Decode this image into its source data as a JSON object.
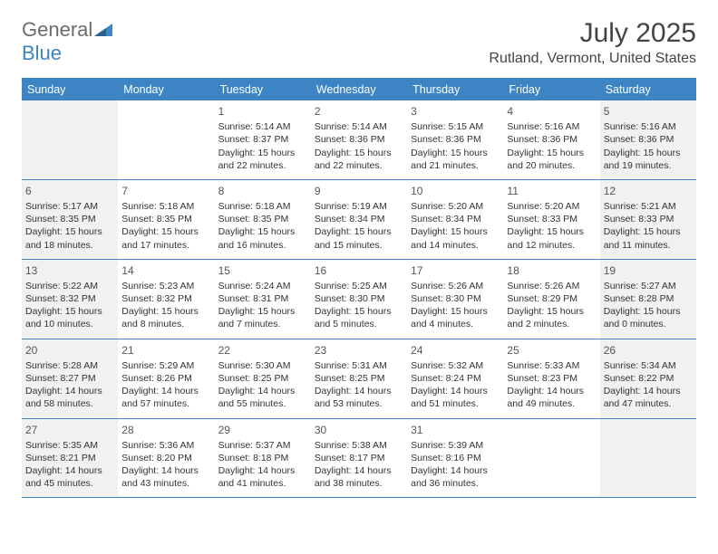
{
  "logo": {
    "text_general": "General",
    "text_blue": "Blue",
    "triangle_color": "#3d84c4"
  },
  "title": "July 2025",
  "location": "Rutland, Vermont, United States",
  "colors": {
    "header_bg": "#3d84c4",
    "header_text": "#ffffff",
    "body_text": "#333333",
    "shaded_bg": "#f1f1f1",
    "border": "#3d84c4"
  },
  "day_headers": [
    "Sunday",
    "Monday",
    "Tuesday",
    "Wednesday",
    "Thursday",
    "Friday",
    "Saturday"
  ],
  "weeks": [
    [
      {
        "num": "",
        "shaded": true,
        "sunrise": "",
        "sunset": "",
        "daylight1": "",
        "daylight2": ""
      },
      {
        "num": "",
        "shaded": false,
        "sunrise": "",
        "sunset": "",
        "daylight1": "",
        "daylight2": ""
      },
      {
        "num": "1",
        "shaded": false,
        "sunrise": "Sunrise: 5:14 AM",
        "sunset": "Sunset: 8:37 PM",
        "daylight1": "Daylight: 15 hours",
        "daylight2": "and 22 minutes."
      },
      {
        "num": "2",
        "shaded": false,
        "sunrise": "Sunrise: 5:14 AM",
        "sunset": "Sunset: 8:36 PM",
        "daylight1": "Daylight: 15 hours",
        "daylight2": "and 22 minutes."
      },
      {
        "num": "3",
        "shaded": false,
        "sunrise": "Sunrise: 5:15 AM",
        "sunset": "Sunset: 8:36 PM",
        "daylight1": "Daylight: 15 hours",
        "daylight2": "and 21 minutes."
      },
      {
        "num": "4",
        "shaded": false,
        "sunrise": "Sunrise: 5:16 AM",
        "sunset": "Sunset: 8:36 PM",
        "daylight1": "Daylight: 15 hours",
        "daylight2": "and 20 minutes."
      },
      {
        "num": "5",
        "shaded": true,
        "sunrise": "Sunrise: 5:16 AM",
        "sunset": "Sunset: 8:36 PM",
        "daylight1": "Daylight: 15 hours",
        "daylight2": "and 19 minutes."
      }
    ],
    [
      {
        "num": "6",
        "shaded": true,
        "sunrise": "Sunrise: 5:17 AM",
        "sunset": "Sunset: 8:35 PM",
        "daylight1": "Daylight: 15 hours",
        "daylight2": "and 18 minutes."
      },
      {
        "num": "7",
        "shaded": false,
        "sunrise": "Sunrise: 5:18 AM",
        "sunset": "Sunset: 8:35 PM",
        "daylight1": "Daylight: 15 hours",
        "daylight2": "and 17 minutes."
      },
      {
        "num": "8",
        "shaded": false,
        "sunrise": "Sunrise: 5:18 AM",
        "sunset": "Sunset: 8:35 PM",
        "daylight1": "Daylight: 15 hours",
        "daylight2": "and 16 minutes."
      },
      {
        "num": "9",
        "shaded": false,
        "sunrise": "Sunrise: 5:19 AM",
        "sunset": "Sunset: 8:34 PM",
        "daylight1": "Daylight: 15 hours",
        "daylight2": "and 15 minutes."
      },
      {
        "num": "10",
        "shaded": false,
        "sunrise": "Sunrise: 5:20 AM",
        "sunset": "Sunset: 8:34 PM",
        "daylight1": "Daylight: 15 hours",
        "daylight2": "and 14 minutes."
      },
      {
        "num": "11",
        "shaded": false,
        "sunrise": "Sunrise: 5:20 AM",
        "sunset": "Sunset: 8:33 PM",
        "daylight1": "Daylight: 15 hours",
        "daylight2": "and 12 minutes."
      },
      {
        "num": "12",
        "shaded": true,
        "sunrise": "Sunrise: 5:21 AM",
        "sunset": "Sunset: 8:33 PM",
        "daylight1": "Daylight: 15 hours",
        "daylight2": "and 11 minutes."
      }
    ],
    [
      {
        "num": "13",
        "shaded": true,
        "sunrise": "Sunrise: 5:22 AM",
        "sunset": "Sunset: 8:32 PM",
        "daylight1": "Daylight: 15 hours",
        "daylight2": "and 10 minutes."
      },
      {
        "num": "14",
        "shaded": false,
        "sunrise": "Sunrise: 5:23 AM",
        "sunset": "Sunset: 8:32 PM",
        "daylight1": "Daylight: 15 hours",
        "daylight2": "and 8 minutes."
      },
      {
        "num": "15",
        "shaded": false,
        "sunrise": "Sunrise: 5:24 AM",
        "sunset": "Sunset: 8:31 PM",
        "daylight1": "Daylight: 15 hours",
        "daylight2": "and 7 minutes."
      },
      {
        "num": "16",
        "shaded": false,
        "sunrise": "Sunrise: 5:25 AM",
        "sunset": "Sunset: 8:30 PM",
        "daylight1": "Daylight: 15 hours",
        "daylight2": "and 5 minutes."
      },
      {
        "num": "17",
        "shaded": false,
        "sunrise": "Sunrise: 5:26 AM",
        "sunset": "Sunset: 8:30 PM",
        "daylight1": "Daylight: 15 hours",
        "daylight2": "and 4 minutes."
      },
      {
        "num": "18",
        "shaded": false,
        "sunrise": "Sunrise: 5:26 AM",
        "sunset": "Sunset: 8:29 PM",
        "daylight1": "Daylight: 15 hours",
        "daylight2": "and 2 minutes."
      },
      {
        "num": "19",
        "shaded": true,
        "sunrise": "Sunrise: 5:27 AM",
        "sunset": "Sunset: 8:28 PM",
        "daylight1": "Daylight: 15 hours",
        "daylight2": "and 0 minutes."
      }
    ],
    [
      {
        "num": "20",
        "shaded": true,
        "sunrise": "Sunrise: 5:28 AM",
        "sunset": "Sunset: 8:27 PM",
        "daylight1": "Daylight: 14 hours",
        "daylight2": "and 58 minutes."
      },
      {
        "num": "21",
        "shaded": false,
        "sunrise": "Sunrise: 5:29 AM",
        "sunset": "Sunset: 8:26 PM",
        "daylight1": "Daylight: 14 hours",
        "daylight2": "and 57 minutes."
      },
      {
        "num": "22",
        "shaded": false,
        "sunrise": "Sunrise: 5:30 AM",
        "sunset": "Sunset: 8:25 PM",
        "daylight1": "Daylight: 14 hours",
        "daylight2": "and 55 minutes."
      },
      {
        "num": "23",
        "shaded": false,
        "sunrise": "Sunrise: 5:31 AM",
        "sunset": "Sunset: 8:25 PM",
        "daylight1": "Daylight: 14 hours",
        "daylight2": "and 53 minutes."
      },
      {
        "num": "24",
        "shaded": false,
        "sunrise": "Sunrise: 5:32 AM",
        "sunset": "Sunset: 8:24 PM",
        "daylight1": "Daylight: 14 hours",
        "daylight2": "and 51 minutes."
      },
      {
        "num": "25",
        "shaded": false,
        "sunrise": "Sunrise: 5:33 AM",
        "sunset": "Sunset: 8:23 PM",
        "daylight1": "Daylight: 14 hours",
        "daylight2": "and 49 minutes."
      },
      {
        "num": "26",
        "shaded": true,
        "sunrise": "Sunrise: 5:34 AM",
        "sunset": "Sunset: 8:22 PM",
        "daylight1": "Daylight: 14 hours",
        "daylight2": "and 47 minutes."
      }
    ],
    [
      {
        "num": "27",
        "shaded": true,
        "sunrise": "Sunrise: 5:35 AM",
        "sunset": "Sunset: 8:21 PM",
        "daylight1": "Daylight: 14 hours",
        "daylight2": "and 45 minutes."
      },
      {
        "num": "28",
        "shaded": false,
        "sunrise": "Sunrise: 5:36 AM",
        "sunset": "Sunset: 8:20 PM",
        "daylight1": "Daylight: 14 hours",
        "daylight2": "and 43 minutes."
      },
      {
        "num": "29",
        "shaded": false,
        "sunrise": "Sunrise: 5:37 AM",
        "sunset": "Sunset: 8:18 PM",
        "daylight1": "Daylight: 14 hours",
        "daylight2": "and 41 minutes."
      },
      {
        "num": "30",
        "shaded": false,
        "sunrise": "Sunrise: 5:38 AM",
        "sunset": "Sunset: 8:17 PM",
        "daylight1": "Daylight: 14 hours",
        "daylight2": "and 38 minutes."
      },
      {
        "num": "31",
        "shaded": false,
        "sunrise": "Sunrise: 5:39 AM",
        "sunset": "Sunset: 8:16 PM",
        "daylight1": "Daylight: 14 hours",
        "daylight2": "and 36 minutes."
      },
      {
        "num": "",
        "shaded": false,
        "sunrise": "",
        "sunset": "",
        "daylight1": "",
        "daylight2": ""
      },
      {
        "num": "",
        "shaded": true,
        "sunrise": "",
        "sunset": "",
        "daylight1": "",
        "daylight2": ""
      }
    ]
  ]
}
